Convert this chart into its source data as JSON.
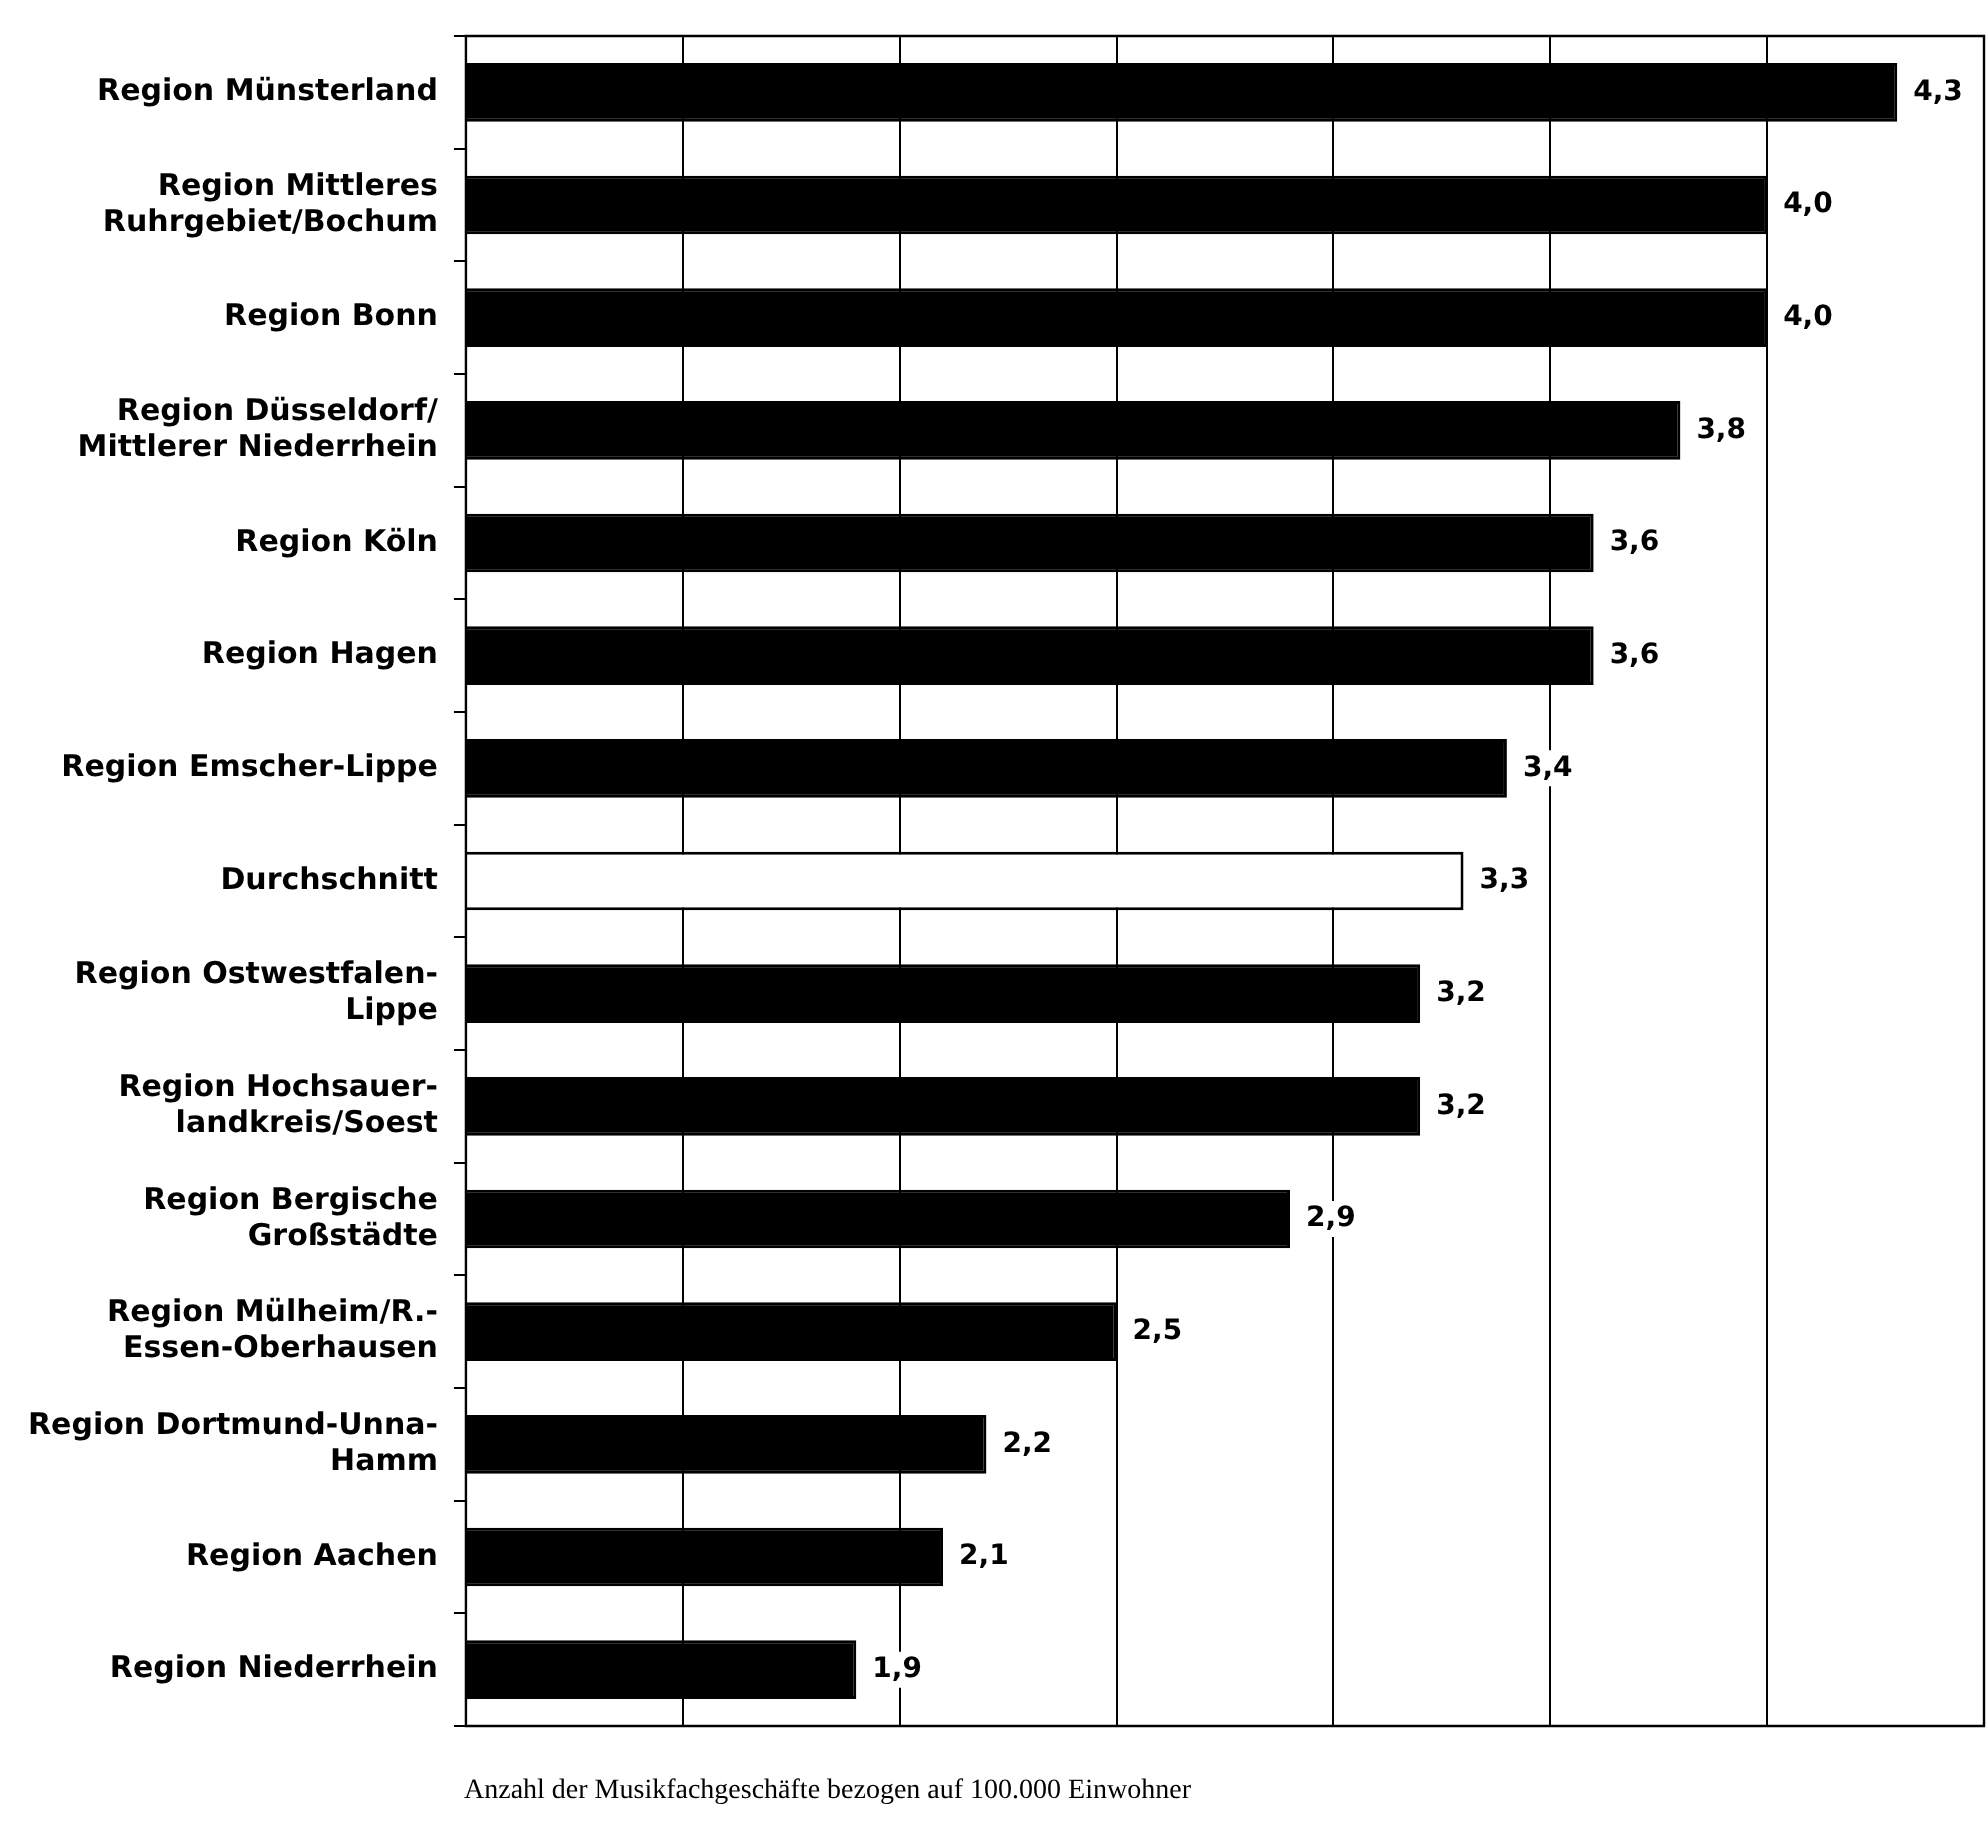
{
  "chart_data": {
    "type": "bar",
    "orientation": "horizontal",
    "categories": [
      "Region Münsterland",
      "Region Mittleres Ruhrgebiet/Bochum",
      "Region Bonn",
      "Region Düsseldorf/ Mittlerer Niederrhein",
      "Region Köln",
      "Region Hagen",
      "Region Emscher-Lippe",
      "Durchschnitt",
      "Region Ostwestfalen-Lippe",
      "Region Hochsauer-landkreis/Soest",
      "Region Bergische Großstädte",
      "Region Mülheim/R.-Essen-Oberhausen",
      "Region Dortmund-Unna-Hamm",
      "Region Aachen",
      "Region Niederrhein"
    ],
    "values": [
      4.3,
      4.0,
      4.0,
      3.8,
      3.6,
      3.6,
      3.4,
      3.3,
      3.2,
      3.2,
      2.9,
      2.5,
      2.2,
      2.1,
      1.9
    ],
    "value_labels": [
      "4,3",
      "4,0",
      "4,0",
      "3,8",
      "3,6",
      "3,6",
      "3,4",
      "3,3",
      "3,2",
      "3,2",
      "2,9",
      "2,5",
      "2,2",
      "2,1",
      "1,9"
    ],
    "colors": [
      "#000000",
      "#000000",
      "#000000",
      "#000000",
      "#000000",
      "#000000",
      "#000000",
      "#ffffff",
      "#000000",
      "#000000",
      "#000000",
      "#000000",
      "#000000",
      "#000000",
      "#000000"
    ],
    "xlabel": "Anzahl der Musikfachgeschäfte bezogen auf 100.000 Einwohner",
    "xlim": [
      1,
      4.5
    ],
    "xticks": [
      {
        "value": 1,
        "label": null
      },
      {
        "value": 1.5,
        "label": null
      },
      {
        "value": 2,
        "label": null
      },
      {
        "value": 2.5,
        "label": null
      },
      {
        "value": 3,
        "label": null
      },
      {
        "value": 3.5,
        "label": null
      },
      {
        "value": 4,
        "label": null
      },
      {
        "value": 4.5,
        "label": null
      }
    ],
    "grid": "x",
    "tick_labels": "y",
    "legend": false
  }
}
